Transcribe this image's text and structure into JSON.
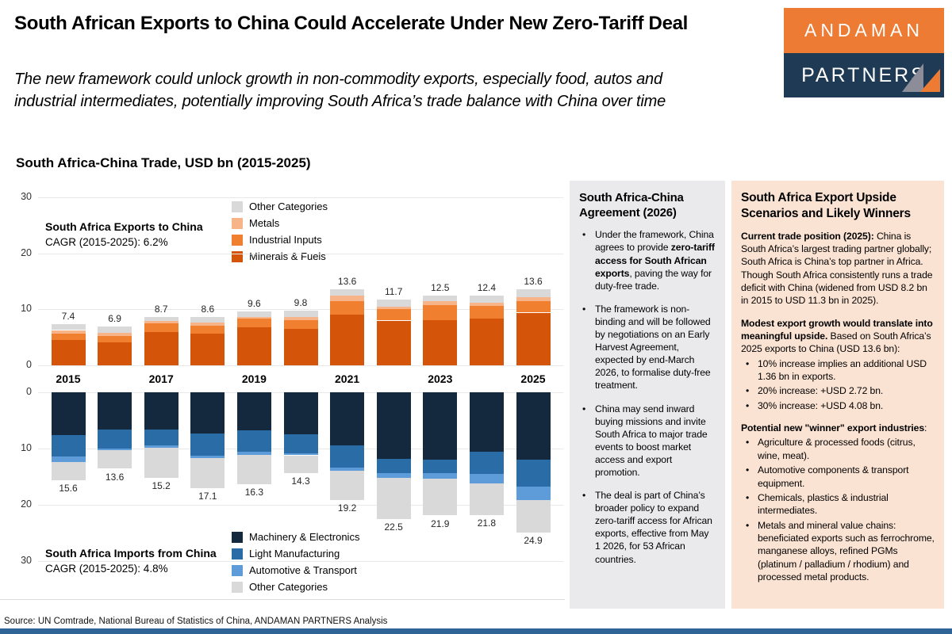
{
  "header": {
    "title": "South African Exports to China Could Accelerate Under New Zero-Tariff Deal",
    "subtitle_lines": [
      "The new framework could unlock growth in non-commodity exports, especially food, autos and",
      "industrial intermediates, potentially improving South Africa’s trade balance with China over time"
    ],
    "logo": {
      "line1": "ANDAMAN",
      "line2": "PARTNERS",
      "orange": "#ED7B33",
      "navy": "#1E3A54"
    }
  },
  "chart": {
    "title": "South Africa-China Trade, USD bn (2015-2025)",
    "exports_annotation": {
      "label": "South Africa Exports to China",
      "cagr": "CAGR (2015-2025): 6.2%"
    },
    "imports_annotation": {
      "label": "South Africa Imports from China",
      "cagr": "CAGR (2015-2025): 4.8%"
    }
  },
  "chart_data": {
    "type": "bar",
    "subtype": "mirrored-stacked",
    "title": "South Africa-China Trade, USD bn (2015-2025)",
    "years": [
      2015,
      2016,
      2017,
      2018,
      2019,
      2020,
      2021,
      2022,
      2023,
      2024,
      2025
    ],
    "year_ticks_shown": [
      2015,
      2017,
      2019,
      2021,
      2023,
      2025
    ],
    "ylim": [
      0,
      30
    ],
    "yticks": [
      0,
      10,
      20,
      30
    ],
    "grid": true,
    "exports": {
      "name": "South Africa Exports to China",
      "cagr_pct": 6.2,
      "totals": [
        7.4,
        6.9,
        8.7,
        8.6,
        9.6,
        9.8,
        13.6,
        11.7,
        12.5,
        12.4,
        13.6
      ],
      "series": [
        {
          "name": "Minerals & Fuels",
          "color": "#D4540A",
          "values": [
            4.5,
            4.1,
            6.0,
            5.7,
            6.8,
            6.5,
            9.0,
            8.0,
            8.1,
            8.3,
            9.4
          ]
        },
        {
          "name": "Industrial Inputs",
          "color": "#F0802F",
          "values": [
            1.2,
            1.2,
            1.5,
            1.4,
            1.5,
            1.6,
            2.4,
            2.1,
            2.7,
            2.3,
            2.1
          ]
        },
        {
          "name": "Metals",
          "color": "#F7B488",
          "values": [
            0.6,
            0.5,
            0.4,
            0.5,
            0.4,
            0.5,
            1.0,
            0.4,
            0.6,
            0.6,
            0.7
          ]
        },
        {
          "name": "Other Categories",
          "color": "#D9D9D9",
          "values": [
            1.1,
            1.1,
            0.8,
            1.0,
            0.9,
            1.2,
            1.2,
            1.2,
            1.1,
            1.2,
            1.4
          ]
        }
      ],
      "legend_order": [
        "Other Categories",
        "Metals",
        "Industrial Inputs",
        "Minerals & Fuels"
      ]
    },
    "imports": {
      "name": "South Africa Imports from China",
      "cagr_pct": 4.8,
      "totals": [
        15.6,
        13.6,
        15.2,
        17.1,
        16.3,
        14.3,
        19.2,
        22.5,
        21.9,
        21.8,
        24.9
      ],
      "series": [
        {
          "name": "Machinery & Electronics",
          "color": "#15293E",
          "values": [
            7.6,
            6.6,
            6.6,
            7.3,
            6.8,
            7.5,
            9.4,
            11.8,
            12.0,
            10.6,
            12.0
          ]
        },
        {
          "name": "Light Manufacturing",
          "color": "#2A6CA5",
          "values": [
            3.8,
            3.4,
            2.9,
            4.0,
            3.8,
            3.4,
            4.0,
            2.5,
            2.4,
            3.9,
            4.8
          ]
        },
        {
          "name": "Automotive & Transport",
          "color": "#5D9CD8",
          "values": [
            1.0,
            0.3,
            0.4,
            0.4,
            0.5,
            0.3,
            0.5,
            0.9,
            0.9,
            1.7,
            2.3
          ]
        },
        {
          "name": "Other Categories",
          "color": "#D9D9D9",
          "values": [
            3.2,
            3.3,
            5.3,
            5.4,
            5.2,
            3.1,
            5.3,
            7.3,
            6.6,
            5.6,
            5.8
          ]
        }
      ],
      "legend_order": [
        "Machinery & Electronics",
        "Light Manufacturing",
        "Automotive & Transport",
        "Other Categories"
      ]
    }
  },
  "panel_agreement": {
    "title": "South Africa-China Agreement (2026)",
    "bullets": [
      [
        {
          "t": "Under the framework, China agrees to provide "
        },
        {
          "t": "zero-tariff access for South African exports",
          "b": true
        },
        {
          "t": ", paving the way for duty-free trade."
        }
      ],
      [
        {
          "t": "The framework is non-binding and will be followed by negotiations on an Early Harvest Agreement, expected by end-March 2026, to formalise duty-free treatment."
        }
      ],
      [
        {
          "t": "China may send inward buying missions and invite South Africa to major trade events to boost market access and export promotion."
        }
      ],
      [
        {
          "t": "The deal is part of China’s broader policy to expand zero-tariff access for African exports, effective from May 1 2026, for 53 African countries."
        }
      ]
    ]
  },
  "panel_upside": {
    "title": "South Africa Export Upside Scenarios and Likely Winners",
    "blocks": [
      {
        "type": "p",
        "segs": [
          {
            "t": "Current trade position (2025): ",
            "b": true
          },
          {
            "t": "China is South Africa’s largest trading partner globally; South Africa is China’s top partner in Africa. Though South Africa consistently runs a trade deficit with China (widened from USD 8.2 bn in 2015 to USD 11.3 bn in 2025)."
          }
        ]
      },
      {
        "type": "p",
        "segs": [
          {
            "t": "Modest export growth would translate into meaningful upside.",
            "b": true
          },
          {
            "t": " Based on South Africa’s 2025 exports to China (USD 13.6 bn):"
          }
        ]
      },
      {
        "type": "ul",
        "items": [
          [
            {
              "t": "10% increase implies an additional USD 1.36 bn in exports."
            }
          ],
          [
            {
              "t": "20% increase: +USD 2.72 bn."
            }
          ],
          [
            {
              "t": "30% increase: +USD 4.08 bn."
            }
          ]
        ]
      },
      {
        "type": "p",
        "segs": [
          {
            "t": "Potential new \"winner\" export industries",
            "b": true
          },
          {
            "t": ":"
          }
        ]
      },
      {
        "type": "ul",
        "items": [
          [
            {
              "t": "Agriculture & processed foods (citrus, wine, meat)."
            }
          ],
          [
            {
              "t": "Automotive components & transport equipment."
            }
          ],
          [
            {
              "t": "Chemicals, plastics & industrial intermediates."
            }
          ],
          [
            {
              "t": "Metals and mineral value chains: beneficiated exports such as ferrochrome, manganese alloys, refined PGMs (platinum / palladium / rhodium) and processed metal products."
            }
          ]
        ]
      }
    ]
  },
  "source": "Source: UN Comtrade, National Bureau of Statistics of China, ANDAMAN PARTNERS Analysis"
}
